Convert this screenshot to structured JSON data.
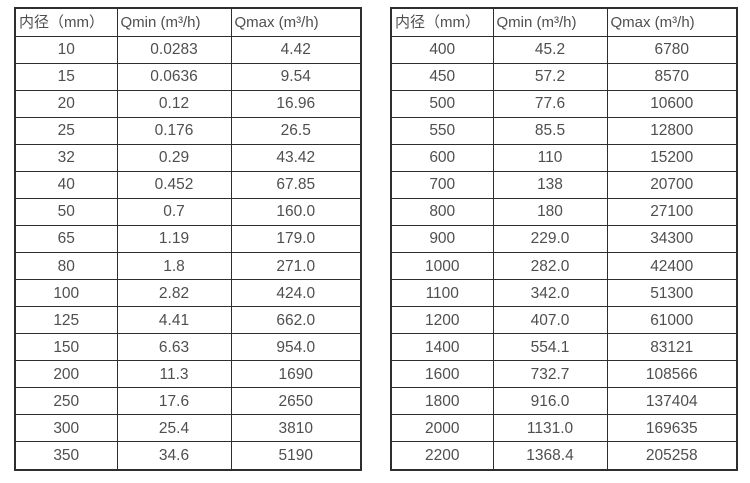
{
  "colors": {
    "background": "#ffffff",
    "text": "#4f4f4f",
    "border": "#2e2e2e"
  },
  "tables": [
    {
      "name": "flow-table-small-diameters",
      "headers": [
        "内径（mm）",
        "Qmin (m³/h)",
        "Qmax (m³/h)"
      ],
      "rows": [
        [
          "10",
          "0.0283",
          "4.42"
        ],
        [
          "15",
          "0.0636",
          "9.54"
        ],
        [
          "20",
          "0.12",
          "16.96"
        ],
        [
          "25",
          "0.176",
          "26.5"
        ],
        [
          "32",
          "0.29",
          "43.42"
        ],
        [
          "40",
          "0.452",
          "67.85"
        ],
        [
          "50",
          "0.7",
          "160.0"
        ],
        [
          "65",
          "1.19",
          "179.0"
        ],
        [
          "80",
          "1.8",
          "271.0"
        ],
        [
          "100",
          "2.82",
          "424.0"
        ],
        [
          "125",
          "4.41",
          "662.0"
        ],
        [
          "150",
          "6.63",
          "954.0"
        ],
        [
          "200",
          "11.3",
          "1690"
        ],
        [
          "250",
          "17.6",
          "2650"
        ],
        [
          "300",
          "25.4",
          "3810"
        ],
        [
          "350",
          "34.6",
          "5190"
        ]
      ]
    },
    {
      "name": "flow-table-large-diameters",
      "headers": [
        "内径（mm）",
        "Qmin (m³/h)",
        "Qmax (m³/h)"
      ],
      "rows": [
        [
          "400",
          "45.2",
          "6780"
        ],
        [
          "450",
          "57.2",
          "8570"
        ],
        [
          "500",
          "77.6",
          "10600"
        ],
        [
          "550",
          "85.5",
          "12800"
        ],
        [
          "600",
          "110",
          "15200"
        ],
        [
          "700",
          "138",
          "20700"
        ],
        [
          "800",
          "180",
          "27100"
        ],
        [
          "900",
          "229.0",
          "34300"
        ],
        [
          "1000",
          "282.0",
          "42400"
        ],
        [
          "1100",
          "342.0",
          "51300"
        ],
        [
          "1200",
          "407.0",
          "61000"
        ],
        [
          "1400",
          "554.1",
          "83121"
        ],
        [
          "1600",
          "732.7",
          "108566"
        ],
        [
          "1800",
          "916.0",
          "137404"
        ],
        [
          "2000",
          "1131.0",
          "169635"
        ],
        [
          "2200",
          "1368.4",
          "205258"
        ]
      ]
    }
  ]
}
